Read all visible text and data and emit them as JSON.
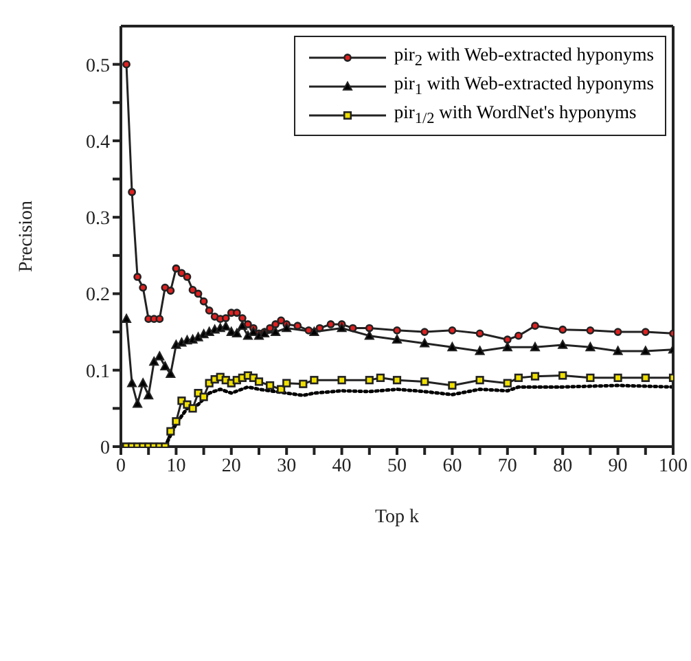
{
  "chart_data": {
    "type": "line",
    "xlabel": "Top k",
    "ylabel": "Precision",
    "xlim": [
      0,
      100
    ],
    "xticks": [
      0,
      {
        "value": 5,
        "label": null
      },
      10,
      {
        "value": 15,
        "label": null
      },
      20,
      {
        "value": 25,
        "label": null
      },
      30,
      {
        "value": 35,
        "label": null
      },
      40,
      {
        "value": 45,
        "label": null
      },
      50,
      {
        "value": 55,
        "label": null
      },
      60,
      {
        "value": 65,
        "label": null
      },
      70,
      {
        "value": 75,
        "label": null
      },
      80,
      {
        "value": 85,
        "label": null
      },
      90,
      {
        "value": 95,
        "label": null
      },
      100
    ],
    "ylim": [
      0,
      0.55
    ],
    "yticks": [
      0,
      {
        "value": 0.05,
        "label": null
      },
      0.1,
      {
        "value": 0.15,
        "label": null
      },
      0.2,
      {
        "value": 0.25,
        "label": null
      },
      0.3,
      {
        "value": 0.35,
        "label": null
      },
      0.4,
      {
        "value": 0.45,
        "label": null
      },
      0.5
    ],
    "legend": "top right",
    "series": [
      {
        "name": "pir$_{2}$ with Web-extracted hyponyms",
        "color": "#e02020",
        "marker": "circle",
        "line_style": "solid",
        "x": [
          1,
          2,
          3,
          4,
          5,
          6,
          7,
          8,
          9,
          10,
          11,
          12,
          13,
          14,
          15,
          16,
          17,
          18,
          19,
          20,
          21,
          22,
          23,
          24,
          25,
          26,
          27,
          28,
          29,
          30,
          32,
          34,
          36,
          38,
          40,
          42,
          45,
          50,
          55,
          60,
          65,
          70,
          72,
          75,
          80,
          85,
          90,
          95,
          100
        ],
        "values": [
          0.5,
          0.333,
          0.222,
          0.208,
          0.167,
          0.167,
          0.167,
          0.208,
          0.204,
          0.233,
          0.227,
          0.222,
          0.205,
          0.2,
          0.19,
          0.178,
          0.17,
          0.167,
          0.168,
          0.175,
          0.175,
          0.168,
          0.16,
          0.155,
          0.148,
          0.15,
          0.155,
          0.16,
          0.165,
          0.16,
          0.158,
          0.152,
          0.155,
          0.16,
          0.16,
          0.155,
          0.155,
          0.152,
          0.15,
          0.152,
          0.148,
          0.14,
          0.145,
          0.158,
          0.153,
          0.152,
          0.15,
          0.15,
          0.148
        ]
      },
      {
        "name": "pir$_{1}$ with Web-extracted hyponyms",
        "color": "#000000",
        "marker": "triangle",
        "line_style": "solid",
        "x": [
          1,
          2,
          3,
          4,
          5,
          6,
          7,
          8,
          9,
          10,
          11,
          12,
          13,
          14,
          15,
          16,
          17,
          18,
          19,
          20,
          21,
          22,
          23,
          24,
          25,
          26,
          28,
          30,
          35,
          40,
          45,
          50,
          55,
          60,
          65,
          70,
          75,
          80,
          85,
          90,
          95,
          100
        ],
        "values": [
          0.167,
          0.083,
          0.056,
          0.083,
          0.067,
          0.111,
          0.118,
          0.105,
          0.095,
          0.133,
          0.136,
          0.139,
          0.14,
          0.143,
          0.147,
          0.15,
          0.153,
          0.155,
          0.157,
          0.15,
          0.148,
          0.158,
          0.145,
          0.15,
          0.145,
          0.148,
          0.15,
          0.155,
          0.15,
          0.155,
          0.145,
          0.14,
          0.135,
          0.13,
          0.125,
          0.13,
          0.13,
          0.133,
          0.13,
          0.125,
          0.125,
          0.127
        ]
      },
      {
        "name": "pir$_{1/2}$ with WordNet's hyponyms",
        "color": "#f0e000",
        "marker": "square",
        "line_style": "solid",
        "x": [
          1,
          2,
          3,
          4,
          5,
          6,
          7,
          8,
          9,
          10,
          11,
          12,
          13,
          14,
          15,
          16,
          17,
          18,
          19,
          20,
          21,
          22,
          23,
          24,
          25,
          27,
          29,
          30,
          33,
          35,
          40,
          45,
          47,
          50,
          55,
          60,
          65,
          70,
          72,
          75,
          80,
          85,
          90,
          95,
          100
        ],
        "values": [
          0,
          0,
          0,
          0,
          0,
          0,
          0,
          0,
          0.02,
          0.033,
          0.06,
          0.055,
          0.05,
          0.07,
          0.065,
          0.083,
          0.088,
          0.091,
          0.087,
          0.083,
          0.087,
          0.09,
          0.093,
          0.09,
          0.085,
          0.08,
          0.075,
          0.083,
          0.082,
          0.087,
          0.087,
          0.087,
          0.09,
          0.087,
          0.085,
          0.08,
          0.087,
          0.083,
          0.09,
          0.092,
          0.093,
          0.09,
          0.09,
          0.09,
          0.09
        ]
      },
      {
        "color": "#000000",
        "marker": "none",
        "line_style": "dotted",
        "x": [
          8,
          10,
          12,
          14,
          16,
          18,
          20,
          23,
          25,
          30,
          33,
          35,
          40,
          45,
          50,
          55,
          60,
          65,
          70,
          72,
          80,
          90,
          100
        ],
        "values": [
          0,
          0.03,
          0.05,
          0.055,
          0.07,
          0.075,
          0.07,
          0.078,
          0.075,
          0.07,
          0.067,
          0.07,
          0.073,
          0.072,
          0.075,
          0.072,
          0.068,
          0.075,
          0.073,
          0.078,
          0.078,
          0.08,
          0.078
        ]
      }
    ]
  }
}
